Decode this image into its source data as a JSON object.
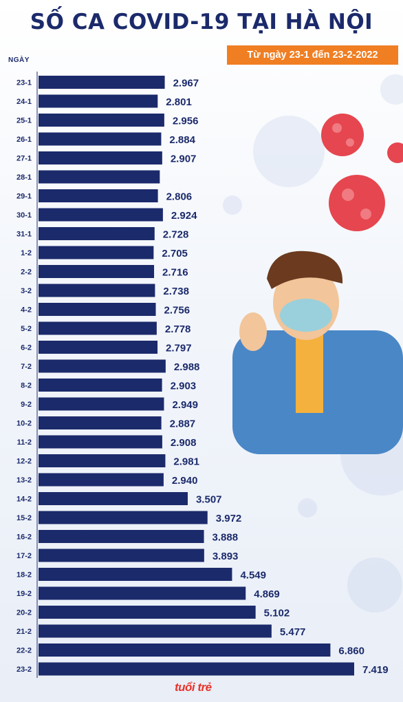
{
  "title": "SỐ CA COVID-19 TẠI HÀ NỘI",
  "date_range": "Từ ngày 23-1 đến 23-2-2022",
  "logo": "tuổi trẻ",
  "colors": {
    "bar": "#1b2a6b",
    "accent": "#f07e22",
    "title": "#1b2a6b"
  },
  "chart_data": {
    "type": "bar",
    "orientation": "horizontal",
    "xlabel": "NGÀY",
    "categories": [
      "23-1",
      "24-1",
      "25-1",
      "26-1",
      "27-1",
      "28-1",
      "29-1",
      "30-1",
      "31-1",
      "1-2",
      "2-2",
      "3-2",
      "4-2",
      "5-2",
      "6-2",
      "7-2",
      "8-2",
      "9-2",
      "10-2",
      "11-2",
      "12-2",
      "13-2",
      "14-2",
      "15-2",
      "16-2",
      "17-2",
      "18-2",
      "19-2",
      "20-2",
      "21-2",
      "22-2",
      "23-2"
    ],
    "values": [
      2967,
      2801,
      2956,
      2884,
      2907,
      2850,
      2806,
      2924,
      2728,
      2705,
      2716,
      2738,
      2756,
      2778,
      2797,
      2988,
      2903,
      2949,
      2887,
      2908,
      2981,
      2940,
      3507,
      3972,
      3888,
      3893,
      4549,
      4869,
      5102,
      5477,
      6860,
      7419
    ],
    "labels": [
      "2.967",
      "2.801",
      "2.956",
      "2.884",
      "2.907",
      "",
      "2.806",
      "2.924",
      "2.728",
      "2.705",
      "2.716",
      "2.738",
      "2.756",
      "2.778",
      "2.797",
      "2.988",
      "2.903",
      "2.949",
      "2.887",
      "2.908",
      "2.981",
      "2.940",
      "3.507",
      "3.972",
      "3.888",
      "3.893",
      "4.549",
      "4.869",
      "5.102",
      "5.477",
      "6.860",
      "7.419"
    ],
    "xlim": [
      0,
      7419
    ],
    "grid": false,
    "legend": "none"
  }
}
